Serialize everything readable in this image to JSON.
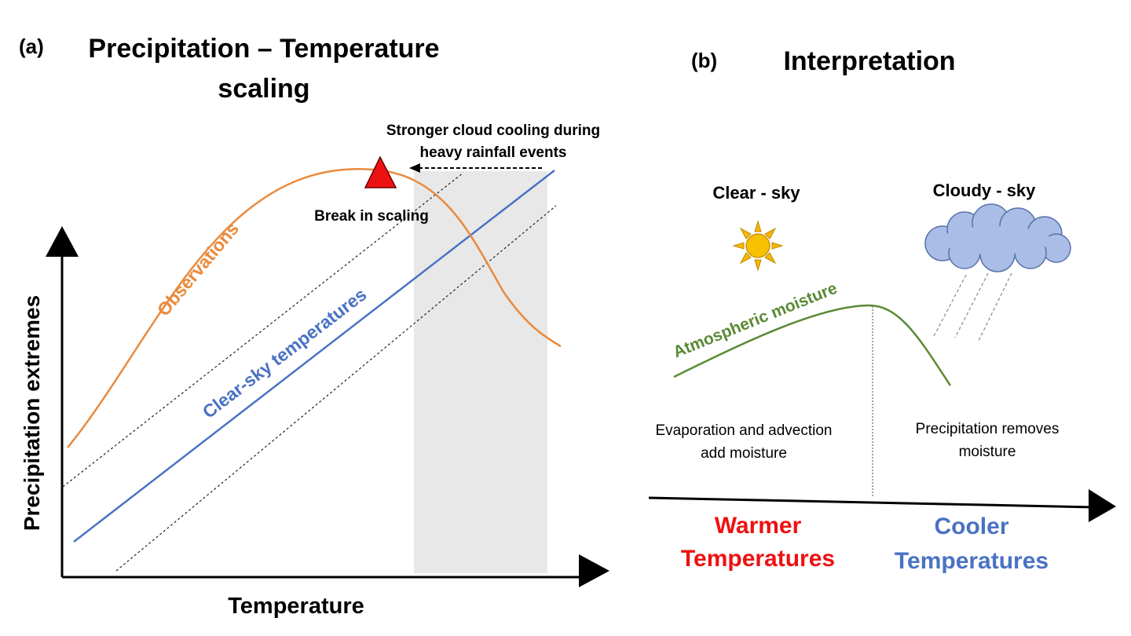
{
  "panel_a": {
    "label": "(a)",
    "title_line1": "Precipitation – Temperature",
    "title_line2": "scaling",
    "y_axis_label": "Precipitation extremes",
    "x_axis_label": "Temperature",
    "observations_label": "Observations",
    "clear_sky_label": "Clear-sky temperatures",
    "annotation_line1": "Stronger cloud cooling during",
    "annotation_line2": "heavy rainfall events",
    "break_label": "Break in scaling",
    "colors": {
      "observations": "#ea8a3c",
      "clear_sky": "#4a72c4",
      "marker": "#ee1111",
      "shade": "#e8e8e8"
    }
  },
  "panel_b": {
    "label": "(b)",
    "title": "Interpretation",
    "clear_sky_label": "Clear - sky",
    "cloudy_sky_label": "Cloudy - sky",
    "moisture_label": "Atmospheric moisture",
    "left_note_line1": "Evaporation and advection",
    "left_note_line2": "add moisture",
    "right_note_line1": "Precipitation removes",
    "right_note_line2": "moisture",
    "warmer_line1": "Warmer",
    "warmer_line2": "Temperatures",
    "cooler_line1": "Cooler",
    "cooler_line2": "Temperatures",
    "colors": {
      "moisture": "#5a8a35",
      "warmer": "#ee1111",
      "cooler": "#4a72c4",
      "sun": "#f5b800",
      "cloud": "#a9bde6"
    },
    "icons": [
      "sun-icon",
      "cloud-icon"
    ]
  }
}
